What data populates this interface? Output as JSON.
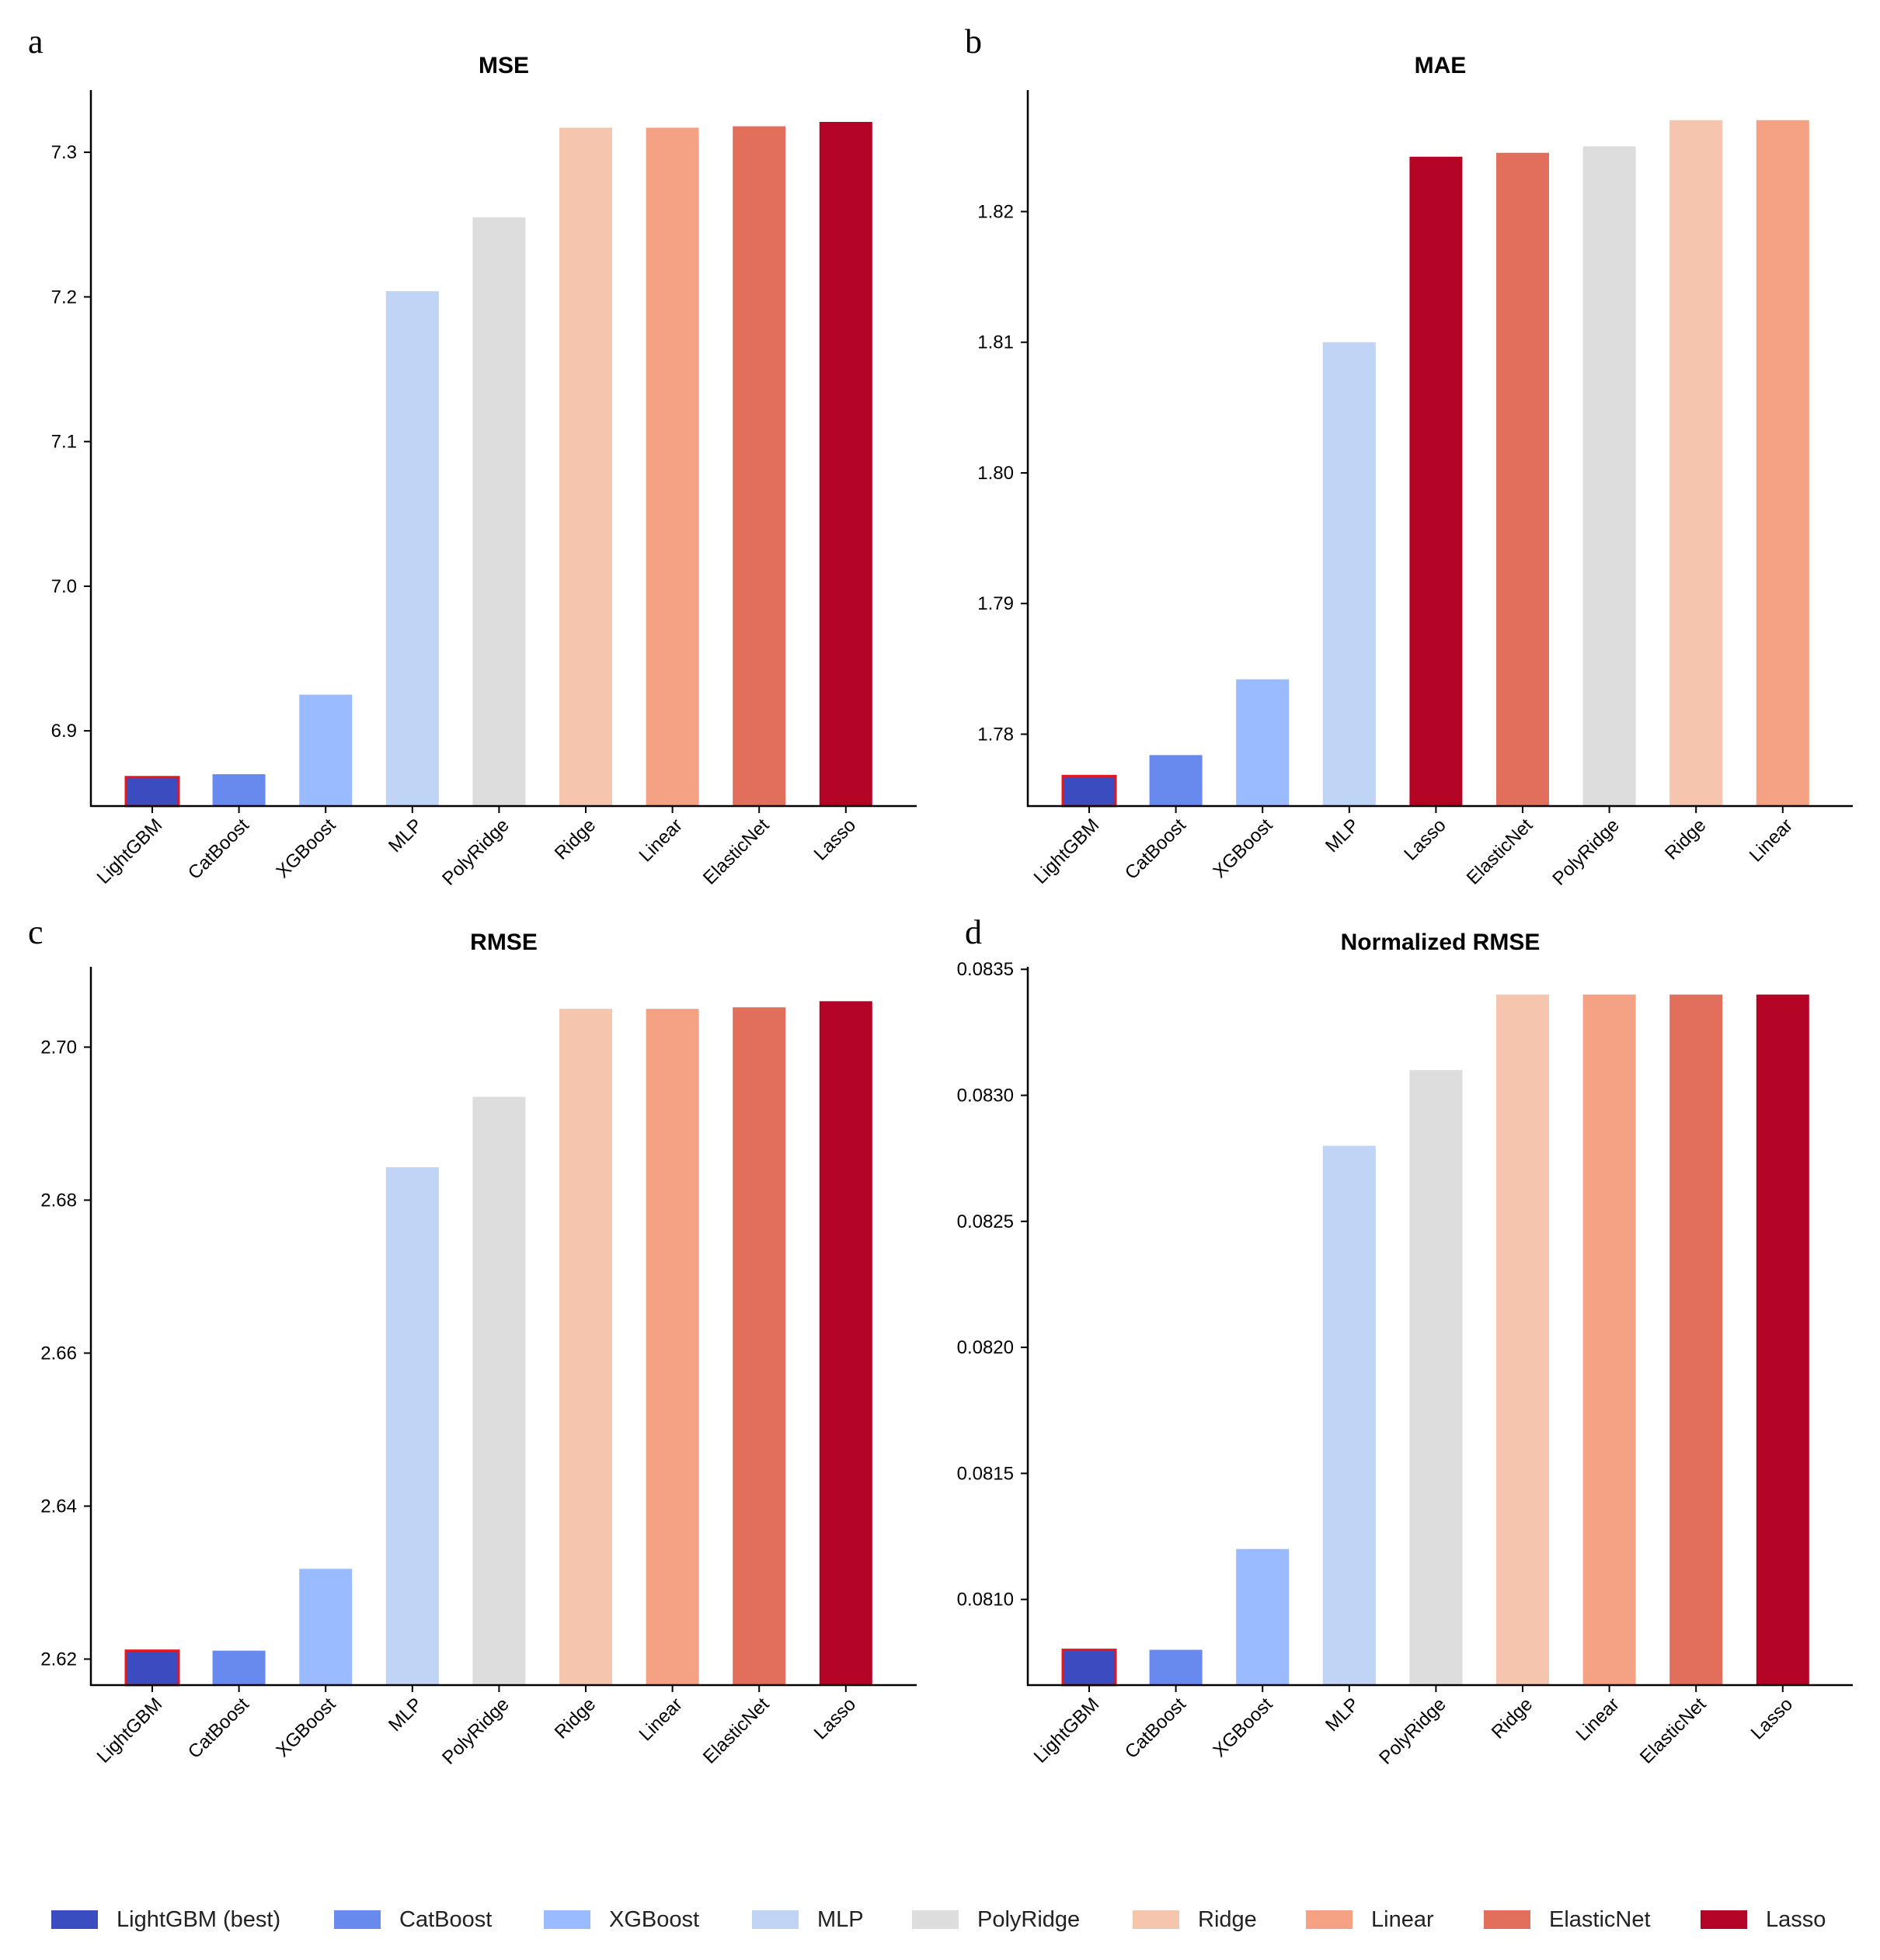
{
  "legend": [
    {
      "label": "LightGBM (best)",
      "color": "#3b4cc0"
    },
    {
      "label": "CatBoost",
      "color": "#6889ee"
    },
    {
      "label": "XGBoost",
      "color": "#9abbff"
    },
    {
      "label": "MLP",
      "color": "#c0d4f5"
    },
    {
      "label": "PolyRidge",
      "color": "#dddddd"
    },
    {
      "label": "Ridge",
      "color": "#f5c5ad"
    },
    {
      "label": "Linear",
      "color": "#f4a283"
    },
    {
      "label": "ElasticNet",
      "color": "#e26e5c"
    },
    {
      "label": "Lasso",
      "color": "#b40426"
    }
  ],
  "chart_data": [
    {
      "panel": "a",
      "type": "bar",
      "title": "MSE",
      "categories": [
        "LightGBM",
        "CatBoost",
        "XGBoost",
        "MLP",
        "PolyRidge",
        "Ridge",
        "Linear",
        "ElasticNet",
        "Lasso"
      ],
      "values": [
        6.868,
        6.87,
        6.925,
        7.204,
        7.255,
        7.317,
        7.317,
        7.318,
        7.321
      ],
      "colors": [
        "#3b4cc0",
        "#6889ee",
        "#9abbff",
        "#c0d4f5",
        "#dddddd",
        "#f5c5ad",
        "#f4a283",
        "#e26e5c",
        "#b40426"
      ],
      "highlight": "LightGBM",
      "ylim": [
        6.848,
        7.343
      ],
      "yticks": [
        6.9,
        7.0,
        7.1,
        7.2,
        7.3
      ],
      "ytick_labels": [
        "6.9",
        "7.0",
        "7.1",
        "7.2",
        "7.3"
      ]
    },
    {
      "panel": "b",
      "type": "bar",
      "title": "MAE",
      "categories": [
        "LightGBM",
        "CatBoost",
        "XGBoost",
        "MLP",
        "Lasso",
        "ElasticNet",
        "PolyRidge",
        "Ridge",
        "Linear"
      ],
      "values": [
        1.7768,
        1.7784,
        1.7842,
        1.81,
        1.8242,
        1.8245,
        1.825,
        1.827,
        1.827
      ],
      "colors": [
        "#3b4cc0",
        "#6889ee",
        "#9abbff",
        "#c0d4f5",
        "#b40426",
        "#e26e5c",
        "#dddddd",
        "#f5c5ad",
        "#f4a283"
      ],
      "highlight": "LightGBM",
      "ylim": [
        1.7745,
        1.8293
      ],
      "yticks": [
        1.78,
        1.79,
        1.8,
        1.81,
        1.82
      ],
      "ytick_labels": [
        "1.78",
        "1.79",
        "1.80",
        "1.81",
        "1.82"
      ]
    },
    {
      "panel": "c",
      "type": "bar",
      "title": "RMSE",
      "categories": [
        "LightGBM",
        "CatBoost",
        "XGBoost",
        "MLP",
        "PolyRidge",
        "Ridge",
        "Linear",
        "ElasticNet",
        "Lasso"
      ],
      "values": [
        2.6211,
        2.6211,
        2.6318,
        2.6843,
        2.6935,
        2.705,
        2.705,
        2.7052,
        2.706
      ],
      "colors": [
        "#3b4cc0",
        "#6889ee",
        "#9abbff",
        "#c0d4f5",
        "#dddddd",
        "#f5c5ad",
        "#f4a283",
        "#e26e5c",
        "#b40426"
      ],
      "highlight": "LightGBM",
      "ylim": [
        2.6166,
        2.7105
      ],
      "yticks": [
        2.62,
        2.64,
        2.66,
        2.68,
        2.7
      ],
      "ytick_labels": [
        "2.62",
        "2.64",
        "2.66",
        "2.68",
        "2.70"
      ]
    },
    {
      "panel": "d",
      "type": "bar",
      "title": "Normalized RMSE",
      "categories": [
        "LightGBM",
        "CatBoost",
        "XGBoost",
        "MLP",
        "PolyRidge",
        "Ridge",
        "Linear",
        "ElasticNet",
        "Lasso"
      ],
      "values": [
        0.0808,
        0.0808,
        0.0812,
        0.0828,
        0.0831,
        0.0834,
        0.0834,
        0.0834,
        0.0834
      ],
      "colors": [
        "#3b4cc0",
        "#6889ee",
        "#9abbff",
        "#c0d4f5",
        "#dddddd",
        "#f5c5ad",
        "#f4a283",
        "#e26e5c",
        "#b40426"
      ],
      "highlight": "LightGBM",
      "ylim": [
        0.08066,
        0.08351
      ],
      "yticks": [
        0.081,
        0.0815,
        0.082,
        0.0825,
        0.083,
        0.0835
      ],
      "ytick_labels": [
        "0.0810",
        "0.0815",
        "0.0820",
        "0.0825",
        "0.0830",
        "0.0835"
      ]
    }
  ]
}
